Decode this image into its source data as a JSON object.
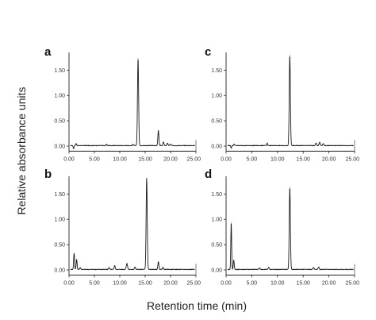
{
  "figure": {
    "ylabel": "Relative absorbance units",
    "xlabel": "Retention time (min)"
  },
  "chart_data": [
    {
      "type": "line",
      "panel": "a",
      "xlim": [
        0,
        25
      ],
      "ylim": [
        -0.1,
        1.85
      ],
      "x_ticks": [
        "0.00",
        "5.00",
        "10.00",
        "15.00",
        "20.00",
        "25.00"
      ],
      "y_ticks": [
        "0.00",
        "0.50",
        "1.00",
        "1.50"
      ],
      "baseline": 0.01,
      "peaks": [
        {
          "x": 0.9,
          "y": -0.06,
          "w": 0.08
        },
        {
          "x": 1.4,
          "y": 0.04,
          "w": 0.1
        },
        {
          "x": 7.4,
          "y": 0.03,
          "w": 0.08
        },
        {
          "x": 12.6,
          "y": 0.03,
          "w": 0.08
        },
        {
          "x": 13.6,
          "y": 1.72,
          "w": 0.11
        },
        {
          "x": 17.6,
          "y": 0.3,
          "w": 0.1
        },
        {
          "x": 18.6,
          "y": 0.07,
          "w": 0.1
        },
        {
          "x": 19.4,
          "y": 0.05,
          "w": 0.1
        },
        {
          "x": 20.0,
          "y": 0.03,
          "w": 0.1
        }
      ]
    },
    {
      "type": "line",
      "panel": "b",
      "xlim": [
        0,
        25
      ],
      "ylim": [
        -0.1,
        1.85
      ],
      "x_ticks": [
        "0.00",
        "5.00",
        "10.00",
        "15.00",
        "20.00",
        "25.00"
      ],
      "y_ticks": [
        "0.00",
        "0.50",
        "1.00",
        "1.50"
      ],
      "baseline": 0.01,
      "peaks": [
        {
          "x": 1.0,
          "y": 0.32,
          "w": 0.09
        },
        {
          "x": 1.5,
          "y": 0.2,
          "w": 0.09
        },
        {
          "x": 2.2,
          "y": 0.04,
          "w": 0.1
        },
        {
          "x": 7.9,
          "y": 0.04,
          "w": 0.1
        },
        {
          "x": 9.0,
          "y": 0.08,
          "w": 0.1
        },
        {
          "x": 11.4,
          "y": 0.12,
          "w": 0.12
        },
        {
          "x": 13.0,
          "y": 0.05,
          "w": 0.1
        },
        {
          "x": 15.3,
          "y": 1.8,
          "w": 0.11
        },
        {
          "x": 17.6,
          "y": 0.15,
          "w": 0.1
        },
        {
          "x": 18.5,
          "y": 0.04,
          "w": 0.1
        }
      ]
    },
    {
      "type": "line",
      "panel": "c",
      "xlim": [
        0,
        25
      ],
      "ylim": [
        -0.1,
        1.85
      ],
      "x_ticks": [
        "0.00",
        "5.00",
        "10.00",
        "15.00",
        "20.00",
        "25.00"
      ],
      "y_ticks": [
        "0.00",
        "0.50",
        "1.00",
        "1.50"
      ],
      "baseline": 0.01,
      "peaks": [
        {
          "x": 1.0,
          "y": -0.05,
          "w": 0.08
        },
        {
          "x": 1.6,
          "y": 0.03,
          "w": 0.1
        },
        {
          "x": 8.0,
          "y": 0.05,
          "w": 0.08
        },
        {
          "x": 12.4,
          "y": 1.78,
          "w": 0.11
        },
        {
          "x": 17.5,
          "y": 0.05,
          "w": 0.1
        },
        {
          "x": 18.2,
          "y": 0.07,
          "w": 0.1
        },
        {
          "x": 18.9,
          "y": 0.04,
          "w": 0.1
        }
      ]
    },
    {
      "type": "line",
      "panel": "d",
      "xlim": [
        0,
        25
      ],
      "ylim": [
        -0.1,
        1.85
      ],
      "x_ticks": [
        "0.00",
        "5.00",
        "10.00",
        "15.00",
        "20.00",
        "25.00"
      ],
      "y_ticks": [
        "0.00",
        "0.50",
        "1.00",
        "1.50"
      ],
      "baseline": 0.01,
      "peaks": [
        {
          "x": 1.0,
          "y": 0.93,
          "w": 0.08
        },
        {
          "x": 1.5,
          "y": 0.18,
          "w": 0.09
        },
        {
          "x": 6.5,
          "y": 0.03,
          "w": 0.1
        },
        {
          "x": 8.3,
          "y": 0.04,
          "w": 0.1
        },
        {
          "x": 12.4,
          "y": 1.62,
          "w": 0.11
        },
        {
          "x": 17.0,
          "y": 0.04,
          "w": 0.1
        },
        {
          "x": 18.0,
          "y": 0.05,
          "w": 0.1
        }
      ]
    }
  ]
}
